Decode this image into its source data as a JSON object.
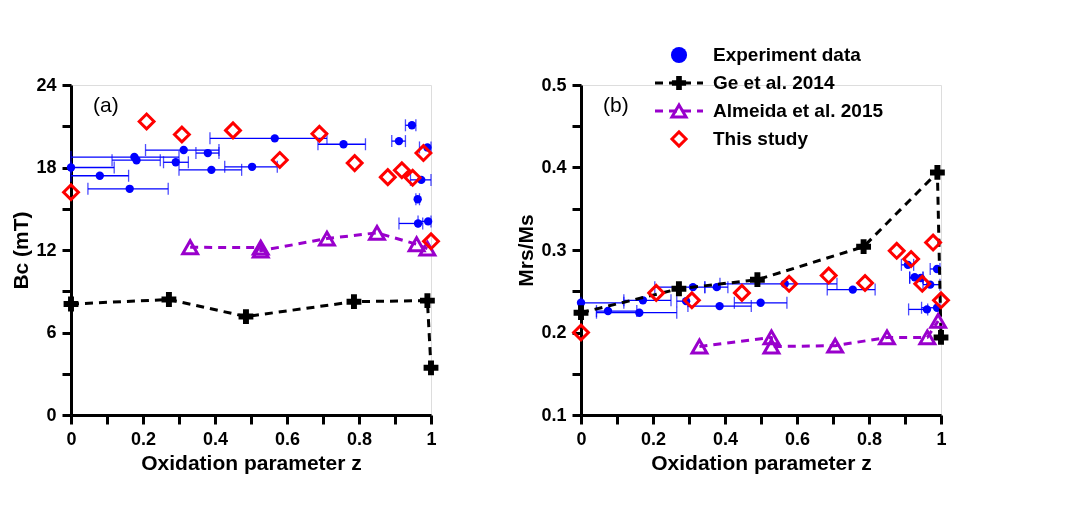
{
  "chart_data": [
    {
      "type": "scatter",
      "xlabel": "Oxidation parameter z",
      "ylabel": "Bc (mT)",
      "annotations": [
        "(a)"
      ],
      "xlim": [
        0,
        1
      ],
      "ylim": [
        0,
        24
      ],
      "xticks": [
        0,
        {
          "value": 0.1,
          "label": null
        },
        0.2,
        {
          "value": 0.3,
          "label": null
        },
        0.4,
        {
          "value": 0.5,
          "label": null
        },
        0.6,
        {
          "value": 0.7,
          "label": null
        },
        0.8,
        {
          "value": 0.9,
          "label": null
        },
        1
      ],
      "yticks": [
        0,
        {
          "value": 3,
          "label": null
        },
        6,
        {
          "value": 9,
          "label": null
        },
        12,
        {
          "value": 15,
          "label": null
        },
        18,
        {
          "value": 21,
          "label": null
        },
        24
      ],
      "grid": false,
      "series": [
        {
          "type": "scatter",
          "marker": "circle",
          "color": "#0000ff",
          "x": [
            0,
            0.08,
            0.163,
            0.176,
            0.182,
            0.291,
            0.313,
            0.38,
            0.39,
            0.503,
            0.566,
            0.757,
            0.911,
            0.947,
            0.99,
            0.973,
            0.963,
            0.964,
            0.992
          ],
          "values": [
            18.0,
            17.4,
            16.45,
            18.76,
            18.53,
            18.38,
            19.27,
            19.05,
            17.83,
            18.05,
            20.12,
            19.69,
            19.92,
            21.07,
            19.46,
            17.1,
            15.69,
            13.93,
            14.08
          ],
          "xerrors": [
            [
              0,
              0.12
            ],
            [
              0,
              0.16
            ],
            [
              0.047,
              0.27
            ],
            [
              0,
              0.3
            ],
            [
              0.114,
              0.248
            ],
            [
              0.257,
              0.326
            ],
            [
              0.207,
              0.411
            ],
            [
              0.347,
              0.411
            ],
            [
              0.3,
              0.474
            ],
            [
              0.427,
              0.573
            ],
            [
              0.386,
              0.711
            ],
            [
              0.686,
              0.818
            ],
            [
              0.891,
              0.929
            ],
            [
              0.929,
              0.958
            ],
            [
              0.968,
              1.0
            ],
            [
              0.943,
              1.0
            ],
            [
              0.958,
              0.968
            ],
            [
              0.911,
              0.977
            ],
            [
              0.964,
              1.0
            ]
          ]
        },
        {
          "type": "line",
          "marker": "cross",
          "line_style": "dashed",
          "color": "#000000",
          "x": [
            0,
            0.272,
            0.486,
            0.786,
            0.99,
            1.0
          ],
          "values": [
            8.07,
            8.4,
            7.16,
            8.24,
            8.32,
            3.43
          ]
        },
        {
          "type": "line",
          "marker": "triangle",
          "line_style": "dashed",
          "color": "#9900cc",
          "x": [
            0.331,
            0.527,
            0.527,
            0.711,
            0.85,
            0.96,
            0.99
          ],
          "values": [
            12.2,
            12.17,
            11.95,
            12.83,
            13.25,
            12.42,
            12.1
          ]
        },
        {
          "type": "scatter",
          "marker": "diamond",
          "color": "#ff0000",
          "x": [
            0,
            0.21,
            0.308,
            0.45,
            0.58,
            0.69,
            0.788,
            0.88,
            0.919,
            0.949,
            0.979,
            1.0
          ],
          "values": [
            16.2,
            21.35,
            20.4,
            20.7,
            18.55,
            20.45,
            18.32,
            17.3,
            17.8,
            17.25,
            19.05,
            12.63
          ]
        }
      ]
    },
    {
      "type": "scatter",
      "xlabel": "Oxidation parameter z",
      "ylabel": "Mrs/Ms",
      "annotations": [
        "(b)"
      ],
      "xlim": [
        0,
        1
      ],
      "ylim": [
        0.1,
        0.5
      ],
      "xticks": [
        0,
        {
          "value": 0.1,
          "label": null
        },
        0.2,
        {
          "value": 0.3,
          "label": null
        },
        0.4,
        {
          "value": 0.5,
          "label": null
        },
        0.6,
        {
          "value": 0.7,
          "label": null
        },
        0.8,
        {
          "value": 0.9,
          "label": null
        },
        1
      ],
      "yticks": [
        0.1,
        {
          "value": 0.15,
          "label": null
        },
        0.2,
        {
          "value": 0.25,
          "label": null
        },
        0.3,
        {
          "value": 0.35,
          "label": null
        },
        0.4,
        {
          "value": 0.45,
          "label": null
        },
        0.5
      ],
      "grid": false,
      "legend": "top right",
      "series": [
        {
          "name": "Experiment data",
          "type": "scatter",
          "marker": "circle",
          "color": "#0000ff",
          "x": [
            0,
            0.075,
            0.162,
            0.172,
            0.292,
            0.311,
            0.377,
            0.385,
            0.499,
            0.566,
            0.755,
            0.908,
            0.927,
            0.944,
            0.97,
            0.989,
            0.961,
            0.989
          ],
          "values": [
            0.236,
            0.226,
            0.224,
            0.239,
            0.238,
            0.255,
            0.255,
            0.232,
            0.236,
            0.259,
            0.252,
            0.282,
            0.267,
            0.266,
            0.258,
            0.277,
            0.228,
            0.23
          ],
          "xerrors": [
            [
              0,
              0.119
            ],
            [
              0.043,
              0.155
            ],
            [
              0.043,
              0.266
            ],
            [
              0.119,
              0.25
            ],
            [
              0.266,
              0.297
            ],
            [
              0.205,
              0.344
            ],
            [
              0.344,
              0.408
            ],
            [
              0.297,
              0.473
            ],
            [
              0.426,
              0.572
            ],
            [
              0.386,
              0.711
            ],
            [
              0.684,
              0.817
            ],
            [
              0.89,
              0.924
            ],
            [
              0.913,
              0.95
            ],
            [
              0.913,
              0.95
            ],
            [
              0.95,
              0.997
            ],
            [
              0.97,
              0.997
            ],
            [
              0.91,
              0.963
            ],
            [
              0.946,
              0.997
            ]
          ]
        },
        {
          "name": "Ge et al. 2014",
          "type": "line",
          "marker": "cross",
          "line_style": "dashed",
          "color": "#000000",
          "x": [
            0,
            0.272,
            0.49,
            0.785,
            0.99,
            1.0
          ],
          "values": [
            0.224,
            0.253,
            0.264,
            0.304,
            0.394,
            0.194
          ]
        },
        {
          "name": "Almeida et al. 2015",
          "type": "line",
          "marker": "triangle",
          "line_style": "dashed",
          "color": "#9900cc",
          "x": [
            0.329,
            0.529,
            0.529,
            0.706,
            0.85,
            0.962,
            0.992
          ],
          "values": [
            0.183,
            0.194,
            0.183,
            0.184,
            0.194,
            0.194,
            0.214
          ]
        },
        {
          "name": "This study",
          "type": "scatter",
          "marker": "diamond",
          "color": "#ff0000",
          "x": [
            0,
            0.209,
            0.308,
            0.447,
            0.578,
            0.688,
            0.789,
            0.877,
            0.917,
            0.948,
            0.978,
            1.0
          ],
          "values": [
            0.2,
            0.248,
            0.239,
            0.248,
            0.259,
            0.269,
            0.26,
            0.299,
            0.289,
            0.259,
            0.309,
            0.239
          ]
        }
      ]
    }
  ]
}
